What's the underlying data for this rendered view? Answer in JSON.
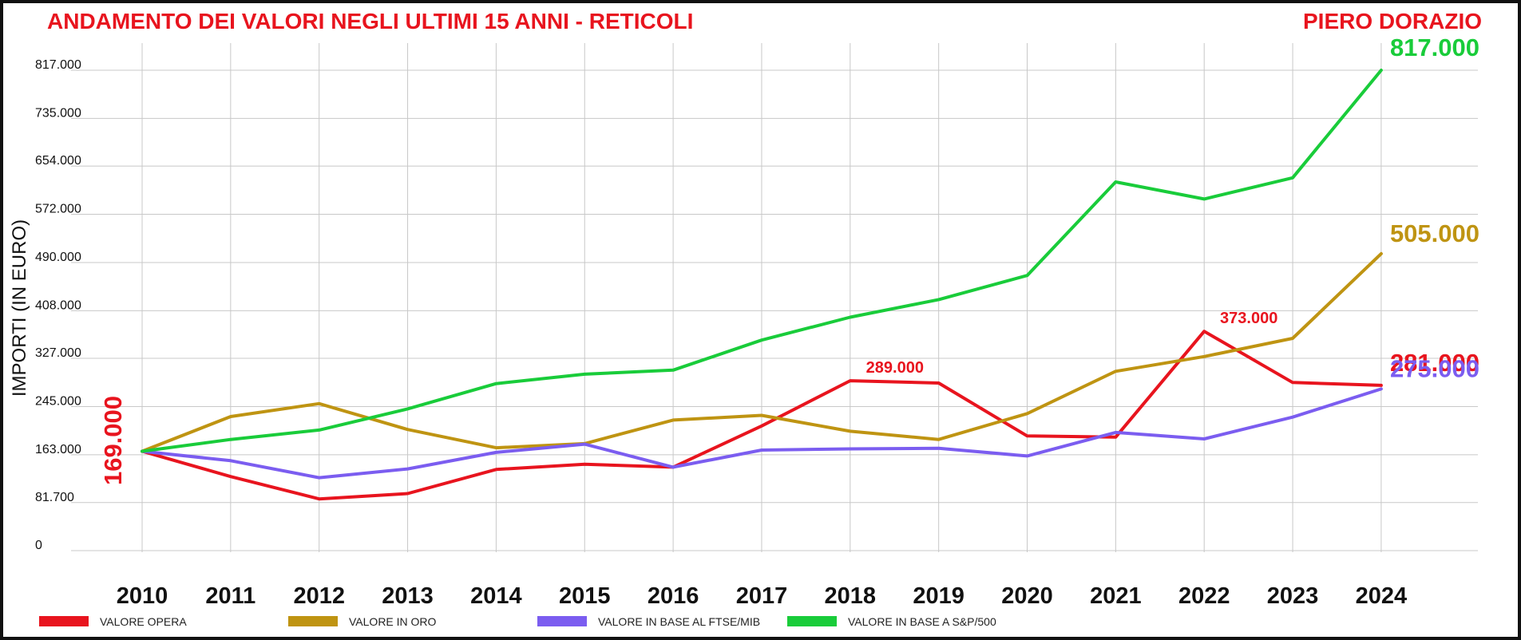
{
  "chart_data": {
    "type": "line",
    "title": "ANDAMENTO DEI VALORI NEGLI ULTIMI 15 ANNI - RETICOLI",
    "author": "PIERO DORAZIO",
    "ylabel": "IMPORTI (IN EURO)",
    "xlabel": "",
    "x": [
      "2010",
      "2011",
      "2012",
      "2013",
      "2014",
      "2015",
      "2016",
      "2017",
      "2018",
      "2019",
      "2020",
      "2021",
      "2022",
      "2023",
      "2024"
    ],
    "yticks": [
      0,
      81700,
      163000,
      245000,
      327000,
      408000,
      490000,
      572000,
      654000,
      735000,
      817000
    ],
    "ytick_labels": [
      "0",
      "81.700",
      "163.000",
      "245.000",
      "327.000",
      "408.000",
      "490.000",
      "572.000",
      "654.000",
      "735.000",
      "817.000"
    ],
    "ylim": [
      0,
      817000
    ],
    "grid": true,
    "legend_position": "bottom",
    "series": [
      {
        "name": "VALORE OPERA",
        "color": "#e8141e",
        "values": [
          169000,
          126000,
          88000,
          97000,
          138000,
          147000,
          142000,
          212000,
          289000,
          285000,
          195000,
          193000,
          373000,
          286000,
          281000
        ],
        "end_label": "281.000",
        "start_label": "169.000",
        "point_labels": [
          {
            "index": 8,
            "text": "289.000"
          },
          {
            "index": 12,
            "text": "373.000"
          }
        ]
      },
      {
        "name": "VALORE IN ORO",
        "color": "#bf9412",
        "values": [
          169000,
          228000,
          250000,
          206000,
          175000,
          182000,
          222000,
          230000,
          203000,
          189000,
          233000,
          305000,
          330000,
          361000,
          505000
        ],
        "end_label": "505.000"
      },
      {
        "name": "VALORE IN BASE AL FTSE/MIB",
        "color": "#7b5df0",
        "values": [
          169000,
          153000,
          124000,
          139000,
          167000,
          181000,
          142000,
          171000,
          173000,
          174000,
          161000,
          201000,
          190000,
          227000,
          275000
        ],
        "end_label": "275.000"
      },
      {
        "name": "VALORE IN BASE A S&P/500",
        "color": "#19cc3a",
        "values": [
          169000,
          189000,
          205000,
          241000,
          284000,
          300000,
          307000,
          358000,
          397000,
          427000,
          468000,
          627000,
          598000,
          634000,
          817000
        ],
        "end_label": "817.000"
      }
    ]
  }
}
